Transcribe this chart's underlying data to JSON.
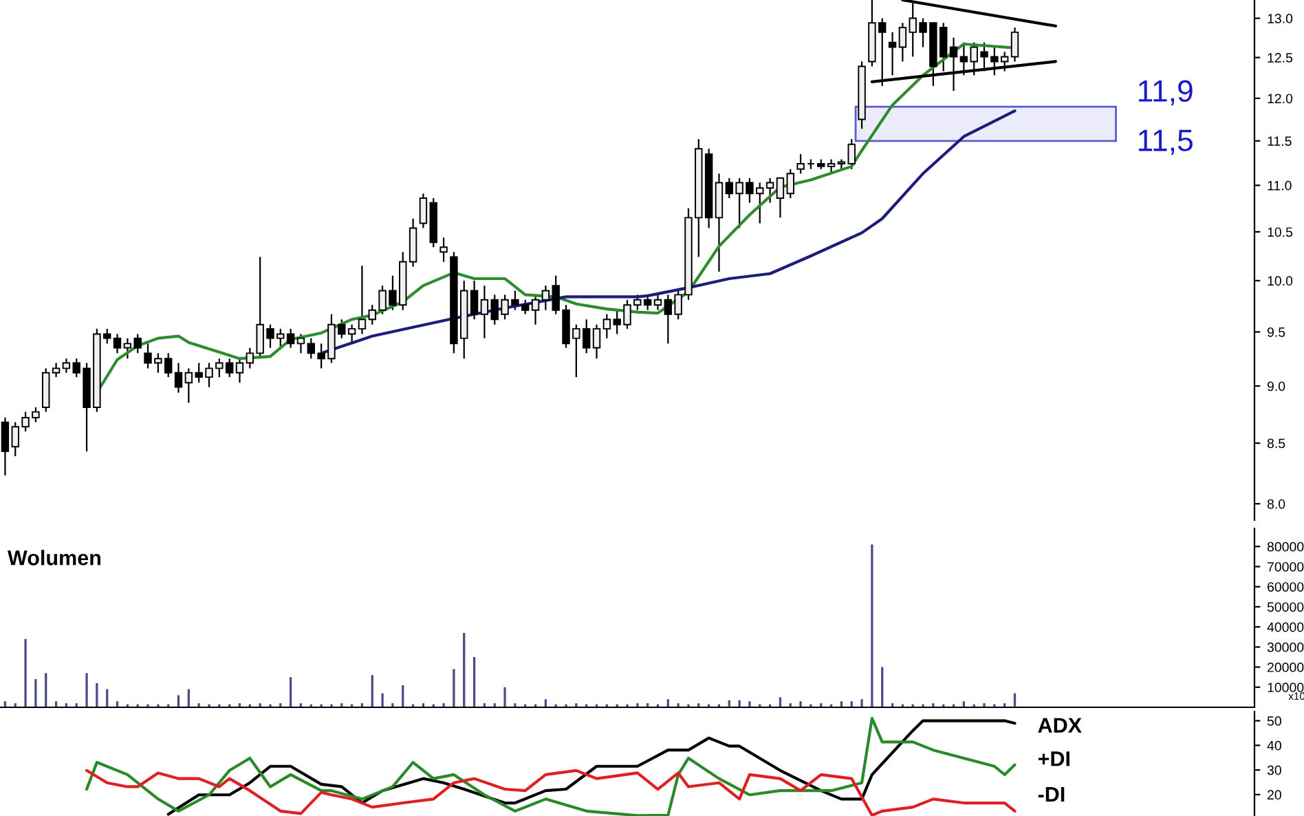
{
  "chart_data": [
    {
      "type": "candlestick",
      "log": true,
      "grid": false,
      "tick_labels": "y",
      "categories": [
        null,
        null,
        null,
        null,
        null,
        null,
        null,
        null,
        null,
        null,
        null,
        null,
        null,
        null,
        null,
        null,
        null,
        null,
        null,
        null,
        null,
        null,
        null,
        null,
        null,
        null,
        null,
        null,
        null,
        null,
        null,
        null,
        null,
        null,
        null,
        null,
        null,
        null,
        null,
        null,
        null,
        null,
        null,
        null,
        null,
        null,
        null,
        null,
        null,
        null,
        null,
        null,
        null,
        null,
        null,
        null,
        null,
        null,
        null,
        null,
        null,
        null,
        null,
        null,
        null,
        null,
        null,
        null,
        null,
        null,
        null,
        null,
        null,
        null,
        null,
        null,
        null,
        null,
        null,
        null,
        null,
        null,
        null,
        null,
        null,
        null,
        null,
        null,
        null,
        null,
        null,
        null,
        null,
        null,
        null,
        null,
        null,
        null,
        null,
        null,
        null,
        null,
        null,
        null,
        null,
        null,
        null,
        null,
        null,
        null,
        null,
        null,
        null,
        null,
        null,
        null,
        null,
        null,
        null,
        null,
        null,
        null,
        null
      ],
      "ohlc": [
        [
          8.68,
          8.72,
          8.23,
          8.43
        ],
        [
          8.47,
          8.68,
          8.39,
          8.64
        ],
        [
          8.64,
          8.77,
          8.6,
          8.72
        ],
        [
          8.72,
          8.81,
          8.68,
          8.77
        ],
        [
          8.81,
          9.16,
          8.77,
          9.12
        ],
        [
          9.12,
          9.21,
          9.08,
          9.16
        ],
        [
          9.16,
          9.25,
          9.12,
          9.21
        ],
        [
          9.21,
          9.25,
          9.08,
          9.12
        ],
        [
          9.16,
          9.21,
          8.43,
          8.81
        ],
        [
          8.81,
          9.53,
          8.77,
          9.48
        ],
        [
          9.48,
          9.53,
          9.39,
          9.44
        ],
        [
          9.44,
          9.48,
          9.3,
          9.35
        ],
        [
          9.35,
          9.44,
          9.25,
          9.39
        ],
        [
          9.44,
          9.48,
          9.3,
          9.35
        ],
        [
          9.3,
          9.39,
          9.16,
          9.21
        ],
        [
          9.21,
          9.3,
          9.12,
          9.25
        ],
        [
          9.25,
          9.3,
          9.08,
          9.12
        ],
        [
          9.12,
          9.21,
          8.94,
          8.99
        ],
        [
          9.03,
          9.16,
          8.85,
          9.12
        ],
        [
          9.12,
          9.21,
          9.03,
          9.08
        ],
        [
          9.08,
          9.21,
          8.99,
          9.16
        ],
        [
          9.16,
          9.25,
          9.08,
          9.21
        ],
        [
          9.21,
          9.25,
          9.08,
          9.12
        ],
        [
          9.12,
          9.25,
          9.03,
          9.21
        ],
        [
          9.21,
          9.35,
          9.16,
          9.3
        ],
        [
          9.3,
          10.24,
          9.25,
          9.57
        ],
        [
          9.53,
          9.57,
          9.35,
          9.44
        ],
        [
          9.44,
          9.53,
          9.35,
          9.48
        ],
        [
          9.48,
          9.53,
          9.35,
          9.39
        ],
        [
          9.39,
          9.48,
          9.3,
          9.44
        ],
        [
          9.39,
          9.44,
          9.25,
          9.3
        ],
        [
          9.3,
          9.39,
          9.16,
          9.25
        ],
        [
          9.25,
          9.67,
          9.21,
          9.57
        ],
        [
          9.57,
          9.62,
          9.44,
          9.48
        ],
        [
          9.48,
          9.57,
          9.39,
          9.53
        ],
        [
          9.53,
          10.15,
          9.48,
          9.62
        ],
        [
          9.62,
          9.76,
          9.57,
          9.71
        ],
        [
          9.71,
          9.95,
          9.67,
          9.9
        ],
        [
          9.9,
          10.05,
          9.71,
          9.76
        ],
        [
          9.76,
          10.29,
          9.71,
          10.19
        ],
        [
          10.19,
          10.64,
          10.14,
          10.54
        ],
        [
          10.59,
          10.91,
          10.54,
          10.86
        ],
        [
          10.81,
          10.86,
          10.34,
          10.39
        ],
        [
          10.29,
          10.44,
          10.19,
          10.34
        ],
        [
          10.24,
          10.29,
          9.3,
          9.39
        ],
        [
          9.44,
          10.0,
          9.25,
          9.9
        ],
        [
          9.9,
          10.0,
          9.62,
          9.67
        ],
        [
          9.67,
          9.95,
          9.44,
          9.81
        ],
        [
          9.81,
          9.86,
          9.57,
          9.62
        ],
        [
          9.67,
          9.86,
          9.62,
          9.81
        ],
        [
          9.81,
          9.9,
          9.71,
          9.76
        ],
        [
          9.76,
          9.81,
          9.67,
          9.71
        ],
        [
          9.71,
          9.86,
          9.57,
          9.81
        ],
        [
          9.81,
          9.95,
          9.71,
          9.9
        ],
        [
          9.95,
          10.05,
          9.67,
          9.71
        ],
        [
          9.71,
          9.76,
          9.35,
          9.39
        ],
        [
          9.44,
          9.57,
          9.08,
          9.53
        ],
        [
          9.53,
          9.62,
          9.3,
          9.35
        ],
        [
          9.35,
          9.57,
          9.25,
          9.53
        ],
        [
          9.53,
          9.67,
          9.44,
          9.62
        ],
        [
          9.62,
          9.71,
          9.48,
          9.57
        ],
        [
          9.57,
          9.81,
          9.53,
          9.76
        ],
        [
          9.76,
          9.86,
          9.71,
          9.81
        ],
        [
          9.81,
          9.86,
          9.71,
          9.76
        ],
        [
          9.76,
          9.86,
          9.71,
          9.81
        ],
        [
          9.81,
          9.86,
          9.39,
          9.67
        ],
        [
          9.67,
          9.9,
          9.62,
          9.86
        ],
        [
          9.86,
          10.75,
          9.81,
          10.65
        ],
        [
          10.65,
          11.52,
          10.24,
          11.41
        ],
        [
          11.35,
          11.41,
          10.54,
          10.65
        ],
        [
          10.65,
          11.13,
          10.09,
          11.03
        ],
        [
          11.03,
          11.08,
          10.86,
          10.91
        ],
        [
          10.91,
          11.08,
          10.54,
          11.03
        ],
        [
          11.03,
          11.08,
          10.81,
          10.91
        ],
        [
          10.91,
          11.03,
          10.59,
          10.97
        ],
        [
          10.97,
          11.08,
          10.81,
          11.03
        ],
        [
          10.86,
          11.08,
          10.65,
          11.08
        ],
        [
          10.91,
          11.18,
          10.86,
          11.13
        ],
        [
          11.18,
          11.35,
          11.13,
          11.24
        ],
        [
          11.24,
          11.29,
          11.18,
          11.24
        ],
        [
          11.24,
          11.29,
          11.18,
          11.21
        ],
        [
          11.21,
          11.29,
          11.15,
          11.24
        ],
        [
          11.24,
          11.29,
          11.18,
          11.26
        ],
        [
          11.24,
          11.52,
          11.18,
          11.46
        ],
        [
          11.75,
          12.45,
          11.64,
          12.39
        ],
        [
          12.45,
          13.24,
          12.39,
          12.94
        ],
        [
          12.94,
          13.0,
          12.15,
          12.82
        ],
        [
          12.69,
          12.82,
          12.28,
          12.63
        ],
        [
          12.63,
          12.94,
          12.45,
          12.88
        ],
        [
          12.82,
          13.2,
          12.51,
          13.0
        ],
        [
          12.94,
          13.0,
          12.63,
          12.82
        ],
        [
          12.94,
          12.94,
          12.15,
          12.39
        ],
        [
          12.88,
          12.94,
          12.33,
          12.51
        ],
        [
          12.63,
          12.75,
          12.09,
          12.51
        ],
        [
          12.51,
          12.69,
          12.28,
          12.45
        ],
        [
          12.45,
          12.69,
          12.28,
          12.63
        ],
        [
          12.57,
          12.69,
          12.33,
          12.51
        ],
        [
          12.51,
          12.63,
          12.28,
          12.45
        ],
        [
          12.45,
          12.57,
          12.33,
          12.51
        ],
        [
          12.51,
          12.88,
          12.45,
          12.82
        ],
        null,
        null,
        null,
        null,
        null,
        null,
        null,
        null,
        null,
        null,
        null,
        null,
        null,
        null,
        null,
        null,
        null,
        null,
        null,
        null,
        null,
        null,
        null
      ],
      "series": [
        {
          "type": "line",
          "color": "#2e8b2e",
          "values": [
            null,
            null,
            null,
            null,
            null,
            null,
            null,
            null,
            null,
            8.94,
            null,
            9.24,
            null,
            9.37,
            null,
            9.44,
            null,
            9.46,
            9.4,
            null,
            null,
            9.31,
            null,
            9.25,
            null,
            null,
            9.27,
            null,
            9.43,
            null,
            null,
            9.49,
            null,
            null,
            9.62,
            null,
            9.66,
            null,
            null,
            9.79,
            null,
            9.95,
            null,
            null,
            10.08,
            null,
            10.02,
            null,
            null,
            10.02,
            null,
            9.86,
            null,
            null,
            9.84,
            null,
            9.77,
            null,
            null,
            9.72,
            null,
            null,
            9.69,
            null,
            9.68,
            null,
            null,
            9.89,
            null,
            null,
            10.35,
            null,
            null,
            10.68,
            null,
            null,
            10.98,
            null,
            null,
            11.06,
            null,
            null,
            null,
            11.21,
            11.39,
            null,
            null,
            11.92,
            null,
            null,
            12.28,
            null,
            null,
            null,
            12.67,
            null,
            12.65,
            null,
            null,
            12.62,
            null,
            null,
            null,
            null,
            null,
            null,
            null,
            null,
            null,
            null,
            null,
            null,
            null,
            null,
            null,
            null,
            null,
            null,
            null,
            null,
            null,
            null,
            null
          ]
        },
        {
          "type": "line",
          "color": "#1c1c7a",
          "values": [
            null,
            null,
            null,
            null,
            null,
            null,
            null,
            null,
            null,
            null,
            null,
            null,
            null,
            null,
            null,
            null,
            null,
            null,
            null,
            null,
            null,
            null,
            null,
            null,
            null,
            null,
            null,
            null,
            null,
            null,
            null,
            9.3,
            null,
            null,
            null,
            null,
            9.46,
            null,
            null,
            null,
            null,
            null,
            null,
            null,
            9.63,
            null,
            null,
            null,
            null,
            9.73,
            null,
            null,
            null,
            null,
            null,
            9.84,
            null,
            null,
            null,
            null,
            null,
            null,
            9.84,
            9.85,
            null,
            null,
            null,
            9.93,
            null,
            null,
            null,
            10.02,
            null,
            null,
            null,
            10.07,
            null,
            null,
            null,
            10.25,
            null,
            null,
            null,
            null,
            10.49,
            null,
            10.64,
            null,
            null,
            null,
            11.13,
            null,
            null,
            null,
            11.55,
            null,
            null,
            null,
            null,
            11.85,
            null,
            null,
            null,
            null,
            null,
            null,
            null,
            null,
            null,
            null,
            null,
            null,
            null,
            null,
            null,
            null,
            null,
            null,
            null,
            null,
            null,
            null,
            null
          ]
        },
        {
          "type": "line",
          "color": "#000000",
          "values": [
            null,
            null,
            null,
            null,
            null,
            null,
            null,
            null,
            null,
            null,
            null,
            null,
            null,
            null,
            null,
            null,
            null,
            null,
            null,
            null,
            null,
            null,
            null,
            null,
            null,
            null,
            null,
            null,
            null,
            null,
            null,
            null,
            null,
            null,
            null,
            null,
            null,
            null,
            null,
            null,
            null,
            null,
            null,
            null,
            null,
            null,
            null,
            null,
            null,
            null,
            null,
            null,
            null,
            null,
            null,
            null,
            null,
            null,
            null,
            null,
            null,
            null,
            null,
            null,
            null,
            null,
            null,
            null,
            null,
            null,
            null,
            null,
            null,
            null,
            null,
            null,
            null,
            null,
            null,
            null,
            null,
            null,
            null,
            null,
            null,
            null,
            null,
            null,
            13.24,
            null,
            null,
            null,
            null,
            null,
            null,
            null,
            null,
            null,
            null,
            null,
            null,
            null,
            null,
            12.9,
            null,
            null,
            null,
            null,
            null,
            null,
            null,
            null,
            null,
            null,
            null,
            null,
            null,
            null,
            null,
            null,
            null,
            null,
            null
          ]
        },
        {
          "type": "line",
          "color": "#000000",
          "values": [
            null,
            null,
            null,
            null,
            null,
            null,
            null,
            null,
            null,
            null,
            null,
            null,
            null,
            null,
            null,
            null,
            null,
            null,
            null,
            null,
            null,
            null,
            null,
            null,
            null,
            null,
            null,
            null,
            null,
            null,
            null,
            null,
            null,
            null,
            null,
            null,
            null,
            null,
            null,
            null,
            null,
            null,
            null,
            null,
            null,
            null,
            null,
            null,
            null,
            null,
            null,
            null,
            null,
            null,
            null,
            null,
            null,
            null,
            null,
            null,
            null,
            null,
            null,
            null,
            null,
            null,
            null,
            null,
            null,
            null,
            null,
            null,
            null,
            null,
            null,
            null,
            null,
            null,
            null,
            null,
            null,
            null,
            null,
            null,
            null,
            12.2,
            null,
            null,
            null,
            null,
            null,
            null,
            null,
            null,
            null,
            null,
            null,
            null,
            null,
            null,
            null,
            null,
            null,
            12.45,
            null,
            null,
            null,
            null,
            null,
            null,
            null,
            null,
            null,
            null,
            null,
            null,
            null,
            null,
            null,
            null,
            null,
            null,
            null
          ]
        }
      ],
      "bands": [
        {
          "axis": "y",
          "from": 11.5,
          "to": 11.9,
          "color": "#5a5ad8"
        }
      ],
      "annotations": [
        "11,9",
        "11,5"
      ],
      "ylim": [
        7.87,
        13.24
      ],
      "yticks": [
        {
          "value": 8,
          "label": "8.0"
        },
        {
          "value": 8.5,
          "label": "8.5"
        },
        {
          "value": 9,
          "label": "9.0"
        },
        {
          "value": 9.5,
          "label": "9.5"
        },
        {
          "value": 10,
          "label": "10.0"
        },
        {
          "value": 10.5,
          "label": "10.5"
        },
        {
          "value": 11,
          "label": "11.0"
        },
        {
          "value": 11.5,
          "label": "11.5"
        },
        {
          "value": 12,
          "label": "12.0"
        },
        {
          "value": 12.5,
          "label": "12.5"
        },
        {
          "value": 13,
          "label": "13.0"
        }
      ]
    },
    {
      "type": "bar",
      "title": "Wolumen",
      "grid": false,
      "tick_labels": "y",
      "color": "#4a4a8a",
      "categories": [
        null,
        null,
        null,
        null,
        null,
        null,
        null,
        null,
        null,
        null,
        null,
        null,
        null,
        null,
        null,
        null,
        null,
        null,
        null,
        null,
        null,
        null,
        null,
        null,
        null,
        null,
        null,
        null,
        null,
        null,
        null,
        null,
        null,
        null,
        null,
        null,
        null,
        null,
        null,
        null,
        null,
        null,
        null,
        null,
        null,
        null,
        null,
        null,
        null,
        null,
        null,
        null,
        null,
        null,
        null,
        null,
        null,
        null,
        null,
        null,
        null,
        null,
        null,
        null,
        null,
        null,
        null,
        null,
        null,
        null,
        null,
        null,
        null,
        null,
        null,
        null,
        null,
        null,
        null,
        null,
        null,
        null,
        null,
        null,
        null,
        null,
        null,
        null,
        null,
        null,
        null,
        null,
        null,
        null,
        null,
        null,
        null,
        null,
        null,
        null,
        null,
        null,
        null,
        null,
        null,
        null,
        null,
        null,
        null,
        null,
        null,
        null,
        null,
        null,
        null,
        null,
        null,
        null,
        null,
        null,
        null,
        null,
        null
      ],
      "values": [
        3000,
        2000,
        34000,
        14000,
        17000,
        3000,
        2000,
        2000,
        17000,
        12000,
        9000,
        3000,
        1500,
        1500,
        1500,
        1500,
        1500,
        6000,
        9000,
        2000,
        1500,
        1500,
        1500,
        2000,
        1500,
        2000,
        1500,
        2000,
        15000,
        2000,
        1500,
        1500,
        1500,
        2000,
        1500,
        2000,
        16000,
        7000,
        2000,
        11000,
        1500,
        2000,
        1500,
        2000,
        19000,
        37000,
        25000,
        2000,
        2000,
        10000,
        2000,
        1500,
        1500,
        4000,
        1500,
        1500,
        2000,
        1500,
        1500,
        1500,
        1500,
        1500,
        2000,
        2000,
        1500,
        4000,
        2000,
        1500,
        2000,
        1500,
        1500,
        3500,
        3500,
        3000,
        1500,
        1500,
        5000,
        2000,
        3000,
        1500,
        2000,
        1500,
        3000,
        3000,
        4000,
        81000,
        20000,
        2000,
        1500,
        1500,
        1500,
        2000,
        1500,
        1500,
        3000,
        1500,
        2000,
        1500,
        2000,
        7000,
        null,
        null,
        null,
        null,
        null,
        null,
        null,
        null,
        null,
        null,
        null,
        null,
        null,
        null,
        null,
        null,
        null,
        null,
        null,
        null,
        null,
        null,
        null
      ],
      "annotations": [
        "x10"
      ],
      "ylim": [
        0,
        89000
      ],
      "yticks": [
        10000,
        20000,
        30000,
        40000,
        50000,
        60000,
        70000,
        80000
      ]
    },
    {
      "type": "line",
      "grid": false,
      "legend": false,
      "tick_labels": "y",
      "categories": [
        null,
        null,
        null,
        null,
        null,
        null,
        null,
        null,
        null,
        null,
        null,
        null,
        null,
        null,
        null,
        null,
        null,
        null,
        null,
        null,
        null,
        null,
        null,
        null,
        null,
        null,
        null,
        null,
        null,
        null,
        null,
        null,
        null,
        null,
        null,
        null,
        null,
        null,
        null,
        null,
        null,
        null,
        null,
        null,
        null,
        null,
        null,
        null,
        null,
        null,
        null,
        null,
        null,
        null,
        null,
        null,
        null,
        null,
        null,
        null,
        null,
        null,
        null,
        null,
        null,
        null,
        null,
        null,
        null,
        null,
        null,
        null,
        null,
        null,
        null,
        null,
        null,
        null,
        null,
        null,
        null,
        null,
        null,
        null,
        null,
        null,
        null,
        null,
        null,
        null,
        null,
        null,
        null,
        null,
        null,
        null,
        null,
        null,
        null,
        null,
        null,
        null,
        null,
        null,
        null,
        null,
        null,
        null,
        null,
        null,
        null,
        null,
        null,
        null,
        null,
        null,
        null,
        null,
        null,
        null,
        null,
        null,
        null
      ],
      "series": [
        {
          "name": "ADX",
          "color": "#000000",
          "values": [
            null,
            null,
            null,
            null,
            null,
            null,
            null,
            null,
            null,
            null,
            null,
            null,
            null,
            null,
            null,
            null,
            12,
            null,
            null,
            19.9,
            null,
            null,
            19.9,
            null,
            24.8,
            null,
            31.5,
            null,
            31.5,
            null,
            null,
            24.2,
            null,
            23.2,
            null,
            16.6,
            null,
            21.6,
            null,
            null,
            null,
            26.5,
            null,
            24.8,
            null,
            22.2,
            null,
            null,
            null,
            16.6,
            16.6,
            null,
            null,
            21.6,
            null,
            22.2,
            null,
            null,
            31.5,
            null,
            null,
            null,
            31.5,
            null,
            null,
            38.1,
            null,
            38.1,
            null,
            43,
            null,
            39.7,
            39.7,
            null,
            null,
            null,
            29.8,
            null,
            null,
            null,
            21.6,
            null,
            18.2,
            null,
            18.2,
            28.1,
            null,
            null,
            null,
            46,
            50,
            null,
            null,
            null,
            null,
            null,
            null,
            null,
            50,
            49,
            null,
            null,
            null,
            null,
            null,
            null,
            null,
            null,
            null,
            null,
            null,
            null,
            null,
            null,
            null,
            null,
            null,
            null,
            null,
            null,
            null,
            null,
            null
          ]
        },
        {
          "name": "+DI",
          "color": "#2a8a2a",
          "values": [
            null,
            null,
            null,
            null,
            null,
            null,
            null,
            null,
            22.2,
            33.1,
            null,
            null,
            28.1,
            null,
            null,
            18.2,
            null,
            13.3,
            null,
            null,
            19.9,
            null,
            29.8,
            null,
            34.8,
            null,
            23.2,
            null,
            28.1,
            null,
            null,
            21.6,
            21.6,
            null,
            null,
            18.2,
            null,
            null,
            23.2,
            null,
            33.1,
            null,
            26.5,
            null,
            28.1,
            null,
            null,
            19.9,
            null,
            null,
            13.3,
            null,
            null,
            18.2,
            null,
            null,
            null,
            13.3,
            null,
            null,
            null,
            null,
            11.5,
            null,
            null,
            11.6,
            28.1,
            34.8,
            null,
            null,
            26.5,
            null,
            null,
            19.9,
            null,
            null,
            21.6,
            null,
            null,
            null,
            null,
            21.6,
            null,
            null,
            24.8,
            51,
            41.4,
            null,
            null,
            41.4,
            null,
            38.1,
            null,
            null,
            34.8,
            null,
            null,
            31.5,
            28.1,
            32.1,
            null,
            null,
            null,
            null,
            null,
            null,
            null,
            null,
            null,
            null,
            null,
            null,
            null,
            null,
            null,
            null,
            null,
            null,
            null,
            null,
            null,
            null,
            null
          ]
        },
        {
          "name": "-DI",
          "color": "#e02020",
          "values": [
            null,
            null,
            null,
            null,
            null,
            null,
            null,
            null,
            29.8,
            null,
            24.8,
            null,
            23.2,
            23.2,
            null,
            28.8,
            null,
            26.5,
            null,
            26.5,
            null,
            23.2,
            26.5,
            null,
            21.6,
            null,
            null,
            13.3,
            null,
            12.3,
            null,
            20.9,
            19.9,
            null,
            18.2,
            null,
            14.9,
            null,
            null,
            16.6,
            null,
            null,
            18.2,
            null,
            24.8,
            null,
            26.5,
            null,
            null,
            22.2,
            null,
            21.6,
            null,
            28.1,
            null,
            null,
            29.8,
            null,
            26.5,
            null,
            null,
            null,
            28.8,
            null,
            22.2,
            null,
            28.8,
            23.2,
            null,
            null,
            24.8,
            null,
            18.2,
            28.1,
            null,
            null,
            26.5,
            null,
            21.6,
            null,
            28.1,
            null,
            null,
            26.5,
            null,
            11.6,
            13.3,
            null,
            null,
            14.9,
            null,
            18.2,
            null,
            null,
            16.6,
            null,
            null,
            null,
            16.6,
            13.3,
            null,
            null,
            null,
            null,
            null,
            null,
            null,
            null,
            null,
            null,
            null,
            null,
            null,
            null,
            null,
            null,
            null,
            null,
            null,
            null,
            null,
            null,
            null
          ]
        }
      ],
      "ylim": [
        11.3,
        53.8
      ],
      "yticks": [
        20,
        30,
        40,
        50
      ]
    }
  ]
}
